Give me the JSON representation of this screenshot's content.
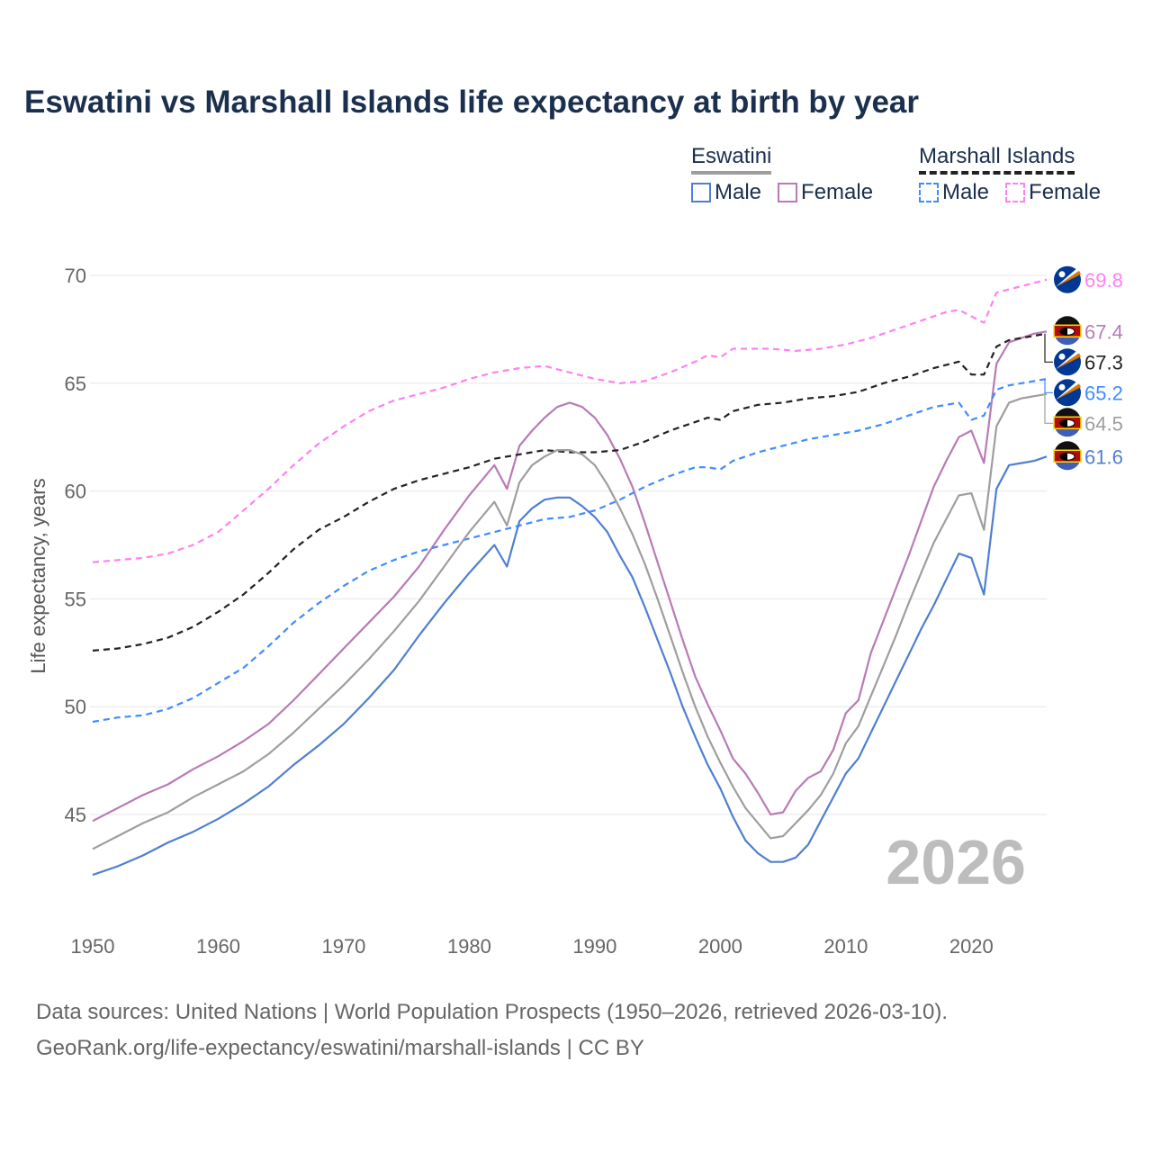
{
  "title": "Eswatini vs Marshall Islands life expectancy at birth by year",
  "legend": {
    "groups": [
      {
        "name": "Eswatini",
        "items": [
          "Male",
          "Female"
        ]
      },
      {
        "name": "Marshall Islands",
        "items": [
          "Male",
          "Female"
        ]
      }
    ]
  },
  "current_year": "2026",
  "footer": {
    "line1": "Data sources: United Nations | World Population Prospects (1950–2026, retrieved 2026-03-10).",
    "line2": "GeoRank.org/life-expectancy/eswatini/marshall-islands | CC BY"
  },
  "chart_data": {
    "type": "line",
    "title": "Eswatini vs Marshall Islands life expectancy at birth by year",
    "xlabel": "",
    "ylabel": "Life expectancy, years",
    "xlim": [
      1950,
      2026
    ],
    "ylim": [
      41.5,
      71
    ],
    "xticks": [
      1950,
      1960,
      1970,
      1980,
      1990,
      2000,
      2010,
      2020
    ],
    "yticks": [
      45,
      50,
      55,
      60,
      65,
      70
    ],
    "grid": true,
    "legend_position": "top-right",
    "series": [
      {
        "name": "Marshall Islands Female",
        "country": "Marshall Islands",
        "color": "#ff80f0",
        "dashed": true,
        "end_label": "69.8",
        "x": [
          1950,
          1952,
          1954,
          1956,
          1958,
          1960,
          1962,
          1964,
          1966,
          1968,
          1970,
          1972,
          1974,
          1976,
          1978,
          1980,
          1982,
          1984,
          1986,
          1988,
          1990,
          1992,
          1994,
          1996,
          1998,
          1999,
          2000,
          2001,
          2004,
          2006,
          2008,
          2010,
          2012,
          2014,
          2016,
          2018,
          2019,
          2021,
          2022,
          2024,
          2026
        ],
        "y": [
          56.7,
          56.8,
          56.9,
          57.1,
          57.5,
          58.1,
          59.1,
          60.1,
          61.2,
          62.2,
          63.0,
          63.7,
          64.2,
          64.5,
          64.8,
          65.2,
          65.5,
          65.7,
          65.8,
          65.5,
          65.2,
          65.0,
          65.1,
          65.5,
          66.0,
          66.3,
          66.2,
          66.6,
          66.6,
          66.5,
          66.6,
          66.8,
          67.1,
          67.5,
          67.9,
          68.3,
          68.4,
          67.8,
          69.2,
          69.5,
          69.8
        ]
      },
      {
        "name": "Eswatini Female",
        "country": "Eswatini",
        "color": "#b87bb5",
        "dashed": false,
        "end_label": "67.4",
        "x": [
          1950,
          1952,
          1954,
          1956,
          1958,
          1960,
          1962,
          1964,
          1966,
          1968,
          1970,
          1972,
          1974,
          1976,
          1978,
          1980,
          1982,
          1983,
          1984,
          1985,
          1986,
          1987,
          1988,
          1989,
          1990,
          1991,
          1992,
          1993,
          1994,
          1995,
          1996,
          1997,
          1998,
          1999,
          2000,
          2001,
          2002,
          2003,
          2004,
          2005,
          2006,
          2007,
          2008,
          2009,
          2010,
          2011,
          2012,
          2013,
          2014,
          2015,
          2016,
          2017,
          2018,
          2019,
          2020,
          2021,
          2022,
          2023,
          2024,
          2025,
          2026
        ],
        "y": [
          44.7,
          45.3,
          45.9,
          46.4,
          47.1,
          47.7,
          48.4,
          49.2,
          50.3,
          51.5,
          52.7,
          53.9,
          55.1,
          56.5,
          58.2,
          59.8,
          61.2,
          60.1,
          62.1,
          62.8,
          63.4,
          63.9,
          64.1,
          63.9,
          63.4,
          62.6,
          61.5,
          60.2,
          58.5,
          56.7,
          54.9,
          53.1,
          51.4,
          50.1,
          48.9,
          47.6,
          46.9,
          46.0,
          45.0,
          45.1,
          46.1,
          46.7,
          47.0,
          48.0,
          49.7,
          50.3,
          52.5,
          54.0,
          55.5,
          57.0,
          58.6,
          60.2,
          61.4,
          62.5,
          62.8,
          61.3,
          65.9,
          66.9,
          67.1,
          67.3,
          67.4
        ]
      },
      {
        "name": "Marshall Islands",
        "country": "Marshall Islands",
        "color": "#222222",
        "dashed": true,
        "end_label": "67.3",
        "x": [
          1950,
          1952,
          1954,
          1956,
          1958,
          1960,
          1962,
          1964,
          1966,
          1968,
          1970,
          1972,
          1974,
          1976,
          1978,
          1980,
          1982,
          1984,
          1986,
          1988,
          1990,
          1992,
          1994,
          1996,
          1998,
          1999,
          2000,
          2001,
          2003,
          2005,
          2007,
          2009,
          2011,
          2013,
          2015,
          2017,
          2019,
          2020,
          2021,
          2022,
          2023,
          2024,
          2025,
          2026
        ],
        "y": [
          52.6,
          52.7,
          52.9,
          53.2,
          53.7,
          54.4,
          55.2,
          56.2,
          57.3,
          58.2,
          58.8,
          59.5,
          60.1,
          60.5,
          60.8,
          61.1,
          61.5,
          61.7,
          61.9,
          61.8,
          61.8,
          61.9,
          62.3,
          62.8,
          63.2,
          63.4,
          63.3,
          63.7,
          64.0,
          64.1,
          64.3,
          64.4,
          64.6,
          65.0,
          65.3,
          65.7,
          66.0,
          65.4,
          65.4,
          66.7,
          67.0,
          67.1,
          67.2,
          67.3
        ]
      },
      {
        "name": "Marshall Islands Male",
        "country": "Marshall Islands",
        "color": "#3f8cff",
        "dashed": true,
        "end_label": "65.2",
        "x": [
          1950,
          1952,
          1954,
          1956,
          1958,
          1960,
          1962,
          1964,
          1966,
          1968,
          1970,
          1972,
          1974,
          1976,
          1978,
          1980,
          1982,
          1984,
          1986,
          1988,
          1990,
          1992,
          1994,
          1996,
          1998,
          1999,
          2000,
          2001,
          2003,
          2005,
          2007,
          2009,
          2011,
          2013,
          2015,
          2017,
          2019,
          2020,
          2021,
          2022,
          2023,
          2024,
          2025,
          2026
        ],
        "y": [
          49.3,
          49.5,
          49.6,
          49.9,
          50.4,
          51.1,
          51.8,
          52.8,
          53.9,
          54.8,
          55.6,
          56.3,
          56.8,
          57.2,
          57.5,
          57.8,
          58.1,
          58.4,
          58.7,
          58.8,
          59.1,
          59.6,
          60.2,
          60.7,
          61.1,
          61.1,
          61.0,
          61.4,
          61.8,
          62.1,
          62.4,
          62.6,
          62.8,
          63.1,
          63.5,
          63.9,
          64.1,
          63.3,
          63.5,
          64.7,
          64.9,
          65.0,
          65.1,
          65.2
        ]
      },
      {
        "name": "Eswatini",
        "country": "Eswatini",
        "color": "#9e9e9e",
        "dashed": false,
        "end_label": "64.5",
        "x": [
          1950,
          1952,
          1954,
          1956,
          1958,
          1960,
          1962,
          1964,
          1966,
          1968,
          1970,
          1972,
          1974,
          1976,
          1978,
          1980,
          1982,
          1983,
          1984,
          1985,
          1986,
          1987,
          1988,
          1989,
          1990,
          1991,
          1992,
          1993,
          1994,
          1995,
          1996,
          1997,
          1998,
          1999,
          2000,
          2001,
          2002,
          2003,
          2004,
          2005,
          2006,
          2007,
          2008,
          2009,
          2010,
          2011,
          2012,
          2013,
          2014,
          2015,
          2016,
          2017,
          2018,
          2019,
          2020,
          2021,
          2022,
          2023,
          2024,
          2025,
          2026
        ],
        "y": [
          43.4,
          44.0,
          44.6,
          45.1,
          45.8,
          46.4,
          47.0,
          47.8,
          48.8,
          49.9,
          51.0,
          52.2,
          53.5,
          54.9,
          56.5,
          58.1,
          59.5,
          58.4,
          60.4,
          61.2,
          61.6,
          61.9,
          61.9,
          61.7,
          61.2,
          60.3,
          59.2,
          58.0,
          56.6,
          55.0,
          53.3,
          51.6,
          50.0,
          48.6,
          47.4,
          46.3,
          45.3,
          44.6,
          43.9,
          44.0,
          44.6,
          45.2,
          45.9,
          46.9,
          48.3,
          49.1,
          50.5,
          51.9,
          53.3,
          54.8,
          56.2,
          57.6,
          58.7,
          59.8,
          59.9,
          58.2,
          63.0,
          64.1,
          64.3,
          64.4,
          64.5
        ]
      },
      {
        "name": "Eswatini Male",
        "country": "Eswatini",
        "color": "#4f7fd0",
        "dashed": false,
        "end_label": "61.6",
        "x": [
          1950,
          1952,
          1954,
          1956,
          1958,
          1960,
          1962,
          1964,
          1966,
          1968,
          1970,
          1972,
          1974,
          1976,
          1978,
          1980,
          1982,
          1983,
          1984,
          1985,
          1986,
          1987,
          1988,
          1989,
          1990,
          1991,
          1992,
          1993,
          1994,
          1995,
          1996,
          1997,
          1998,
          1999,
          2000,
          2001,
          2002,
          2003,
          2004,
          2005,
          2006,
          2007,
          2008,
          2009,
          2010,
          2011,
          2012,
          2013,
          2014,
          2015,
          2016,
          2017,
          2018,
          2019,
          2020,
          2021,
          2022,
          2023,
          2024,
          2025,
          2026
        ],
        "y": [
          42.2,
          42.6,
          43.1,
          43.7,
          44.2,
          44.8,
          45.5,
          46.3,
          47.3,
          48.2,
          49.2,
          50.4,
          51.7,
          53.3,
          54.8,
          56.2,
          57.5,
          56.5,
          58.6,
          59.2,
          59.6,
          59.7,
          59.7,
          59.3,
          58.8,
          58.1,
          57.0,
          56.0,
          54.6,
          53.1,
          51.6,
          50.0,
          48.6,
          47.3,
          46.2,
          44.9,
          43.8,
          43.2,
          42.8,
          42.8,
          43.0,
          43.6,
          44.7,
          45.8,
          46.9,
          47.6,
          48.8,
          50.0,
          51.2,
          52.4,
          53.6,
          54.7,
          55.9,
          57.1,
          56.9,
          55.2,
          60.1,
          61.2,
          61.3,
          61.4,
          61.6
        ]
      }
    ]
  }
}
